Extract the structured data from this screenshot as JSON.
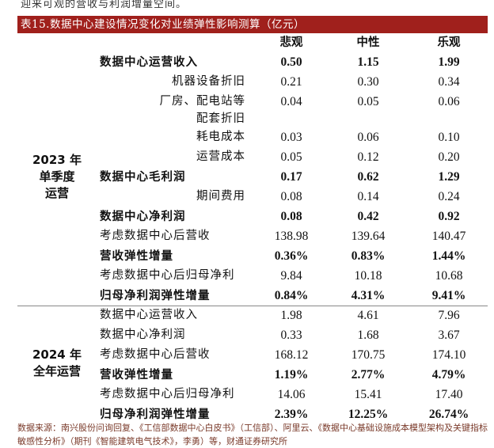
{
  "top_text": "迎来可观的营收与利润增量空间。",
  "title": "表15.数据中心建设情况变化对业绩弹性影响测算（亿元）",
  "columns": [
    "悲观",
    "中性",
    "乐观"
  ],
  "groups": [
    {
      "label_line1": "2023 年",
      "label_line2": "单季度",
      "label_line3": "运营",
      "rows": [
        {
          "label": "数据中心运营收入",
          "bold": true,
          "indent": false,
          "values": [
            "0.50",
            "1.15",
            "1.99"
          ]
        },
        {
          "label": "机器设备折旧",
          "bold": false,
          "indent": true,
          "values": [
            "0.21",
            "0.30",
            "0.34"
          ]
        },
        {
          "label": "厂房、配电站等",
          "bold": false,
          "indent": true,
          "values": [
            "0.04",
            "0.05",
            "0.06"
          ]
        },
        {
          "label": "配套折旧",
          "bold": false,
          "indent": true,
          "values": [
            "",
            "",
            ""
          ]
        },
        {
          "label": "耗电成本",
          "bold": false,
          "indent": true,
          "values": [
            "0.03",
            "0.06",
            "0.10"
          ]
        },
        {
          "label": "运营成本",
          "bold": false,
          "indent": true,
          "values": [
            "0.05",
            "0.12",
            "0.20"
          ]
        },
        {
          "label": "数据中心毛利润",
          "bold": true,
          "indent": false,
          "values": [
            "0.17",
            "0.62",
            "1.29"
          ]
        },
        {
          "label": "期间费用",
          "bold": false,
          "indent": true,
          "values": [
            "0.08",
            "0.14",
            "0.24"
          ]
        },
        {
          "label": "数据中心净利润",
          "bold": true,
          "indent": false,
          "values": [
            "0.08",
            "0.42",
            "0.92"
          ]
        },
        {
          "label": "考虑数据中心后营收",
          "bold": false,
          "indent": false,
          "values": [
            "138.98",
            "139.64",
            "140.47"
          ]
        },
        {
          "label": "营收弹性增量",
          "bold": true,
          "indent": false,
          "values": [
            "0.36%",
            "0.83%",
            "1.44%"
          ]
        },
        {
          "label": "考虑数据中心后归母净利",
          "bold": false,
          "indent": false,
          "values": [
            "9.84",
            "10.18",
            "10.68"
          ]
        },
        {
          "label": "归母净利润弹性增量",
          "bold": true,
          "indent": false,
          "values": [
            "0.84%",
            "4.31%",
            "9.41%"
          ]
        }
      ]
    },
    {
      "label_line1": "2024 年",
      "label_line2": "全年运营",
      "label_line3": "",
      "rows": [
        {
          "label": "数据中心运营收入",
          "bold": false,
          "indent": false,
          "values": [
            "1.98",
            "4.61",
            "7.96"
          ]
        },
        {
          "label": "数据中心净利润",
          "bold": false,
          "indent": false,
          "values": [
            "0.33",
            "1.68",
            "3.67"
          ]
        },
        {
          "label": "考虑数据中心后营收",
          "bold": false,
          "indent": false,
          "values": [
            "168.12",
            "170.75",
            "174.10"
          ]
        },
        {
          "label": "营收弹性增量",
          "bold": true,
          "indent": false,
          "values": [
            "1.19%",
            "2.77%",
            "4.79%"
          ]
        },
        {
          "label": "考虑数据中心后归母净利",
          "bold": false,
          "indent": false,
          "values": [
            "14.06",
            "15.41",
            "17.40"
          ]
        },
        {
          "label": "归母净利润弹性增量",
          "bold": true,
          "indent": false,
          "values": [
            "2.39%",
            "12.25%",
            "26.74%"
          ]
        }
      ]
    }
  ],
  "footnote": "数据来源：南兴股份问询回复、《工信部数据中心白皮书》（工信部）、阿里云、《数据中心基础设施成本模型架构及关键指标敏感性分析》（期刊《智能建筑电气技术》，李勇）等，财通证券研究所"
}
